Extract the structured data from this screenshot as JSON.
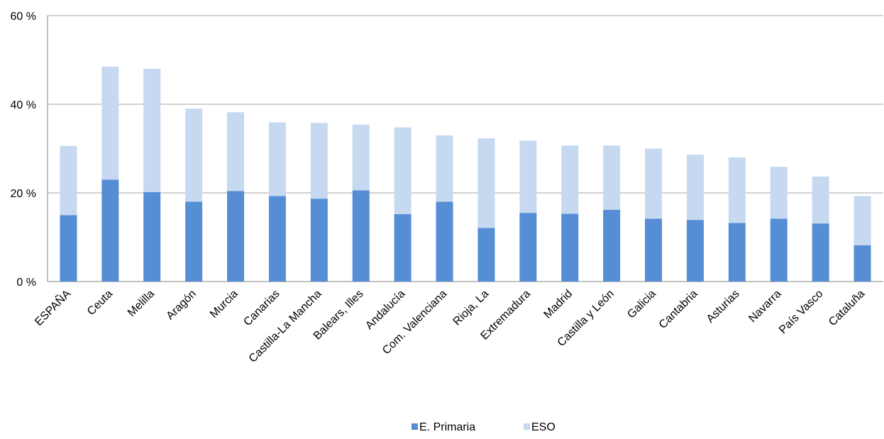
{
  "chart_data": {
    "type": "bar",
    "stacked": true,
    "categories": [
      "ESPAÑA",
      "Ceuta",
      "Melilla",
      "Aragón",
      "Murcia",
      "Canarias",
      "Castilla-La Mancha",
      "Balears, Illes",
      "Andalucía",
      "Com. Valenciana",
      "Rioja, La",
      "Extremadura",
      "Madrid",
      "Castilla y León",
      "Galicia",
      "Cantabria",
      "Asturias",
      "Navarra",
      "País Vasco",
      "Cataluña"
    ],
    "series": [
      {
        "name": "E. Primaria",
        "color": "#558ed5",
        "values": [
          15.0,
          23.0,
          20.2,
          18.0,
          20.4,
          19.3,
          18.7,
          20.6,
          15.2,
          18.0,
          12.1,
          15.5,
          15.3,
          16.2,
          14.2,
          13.9,
          13.2,
          14.2,
          13.1,
          8.2
        ]
      },
      {
        "name": "ESO",
        "color": "#c6d9f1",
        "values": [
          15.6,
          25.5,
          27.8,
          21.0,
          17.8,
          16.6,
          17.1,
          14.8,
          19.6,
          15.0,
          20.2,
          16.3,
          15.4,
          14.5,
          15.8,
          14.7,
          14.8,
          11.7,
          10.6,
          11.1
        ]
      }
    ],
    "y_ticks": [
      "0 %",
      "20 %",
      "40 %",
      "60 %"
    ],
    "ylim": [
      0,
      60
    ],
    "ylabel": "",
    "xlabel": "",
    "title": "",
    "grid": true,
    "legend_position": "bottom"
  }
}
